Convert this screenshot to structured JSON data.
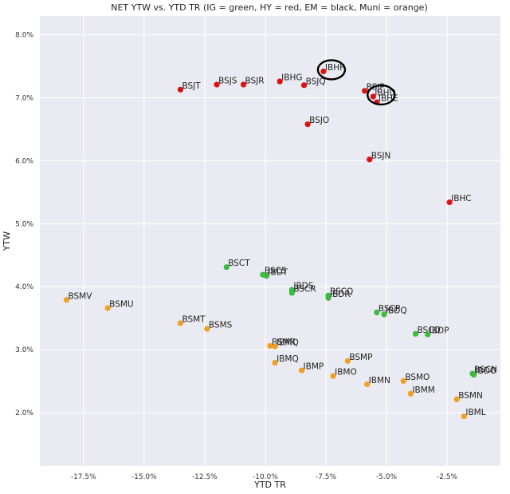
{
  "chart_data": {
    "type": "scatter",
    "title": "NET YTW vs. YTD TR (IG = green, HY = red, EM = black, Muni = orange)",
    "xlabel": "YTD TR",
    "ylabel": "YTW",
    "xlim": [
      -19.3,
      -0.3
    ],
    "ylim": [
      1.15,
      8.3
    ],
    "xticks": [
      -17.5,
      -15.0,
      -12.5,
      -10.0,
      -7.5,
      -5.0,
      -2.5
    ],
    "xtick_labels": [
      "-17.5%",
      "-15.0%",
      "-12.5%",
      "-10.0%",
      "-7.5%",
      "-5.0%",
      "-2.5%"
    ],
    "yticks": [
      2.0,
      3.0,
      4.0,
      5.0,
      6.0,
      7.0,
      8.0
    ],
    "ytick_labels": [
      "2.0%",
      "3.0%",
      "4.0%",
      "5.0%",
      "6.0%",
      "7.0%",
      "8.0%"
    ],
    "grid": true,
    "colors": {
      "background": "#eaeaf2",
      "grid": "#ffffff",
      "IG": "#3dbb3d",
      "HY": "#dd1111",
      "Muni": "#f0a020",
      "circle": "#000000"
    },
    "points": [
      {
        "label": "BSJT",
        "x": -13.5,
        "y": 7.13,
        "group": "HY"
      },
      {
        "label": "BSJS",
        "x": -12.0,
        "y": 7.21,
        "group": "HY"
      },
      {
        "label": "BSJR",
        "x": -10.9,
        "y": 7.21,
        "group": "HY"
      },
      {
        "label": "IBHG",
        "x": -9.4,
        "y": 7.26,
        "group": "HY"
      },
      {
        "label": "BSJQ",
        "x": -8.4,
        "y": 7.2,
        "group": "HY"
      },
      {
        "label": "IBHF",
        "x": -7.6,
        "y": 7.42,
        "group": "HY"
      },
      {
        "label": "BSJP",
        "x": -5.9,
        "y": 7.11,
        "group": "HY"
      },
      {
        "label": "IBHD",
        "x": -5.55,
        "y": 7.02,
        "group": "HY"
      },
      {
        "label": "IBHE",
        "x": -5.4,
        "y": 6.93,
        "group": "HY"
      },
      {
        "label": "BSJO",
        "x": -8.25,
        "y": 6.58,
        "group": "HY"
      },
      {
        "label": "BSJN",
        "x": -5.7,
        "y": 6.02,
        "group": "HY"
      },
      {
        "label": "IBHC",
        "x": -2.4,
        "y": 5.34,
        "group": "HY"
      },
      {
        "label": "BSCT",
        "x": -11.6,
        "y": 4.31,
        "group": "IG"
      },
      {
        "label": "BSCS",
        "x": -10.1,
        "y": 4.19,
        "group": "IG"
      },
      {
        "label": "IBDT",
        "x": -9.95,
        "y": 4.17,
        "group": "IG"
      },
      {
        "label": "IBDS",
        "x": -8.9,
        "y": 3.95,
        "group": "IG"
      },
      {
        "label": "BSCR",
        "x": -8.9,
        "y": 3.9,
        "group": "IG"
      },
      {
        "label": "BSCQ",
        "x": -7.4,
        "y": 3.86,
        "group": "IG"
      },
      {
        "label": "IBDR",
        "x": -7.4,
        "y": 3.82,
        "group": "IG"
      },
      {
        "label": "BSCP",
        "x": -5.4,
        "y": 3.59,
        "group": "IG"
      },
      {
        "label": "IBDQ",
        "x": -5.1,
        "y": 3.56,
        "group": "IG"
      },
      {
        "label": "BSCO",
        "x": -3.8,
        "y": 3.25,
        "group": "IG"
      },
      {
        "label": "IBDP",
        "x": -3.3,
        "y": 3.24,
        "group": "IG"
      },
      {
        "label": "BSCN",
        "x": -1.45,
        "y": 2.62,
        "group": "IG"
      },
      {
        "label": "IBDO",
        "x": -1.4,
        "y": 2.6,
        "group": "IG"
      },
      {
        "label": "BSMV",
        "x": -18.2,
        "y": 3.79,
        "group": "Muni"
      },
      {
        "label": "BSMU",
        "x": -16.5,
        "y": 3.66,
        "group": "Muni"
      },
      {
        "label": "BSMT",
        "x": -13.5,
        "y": 3.42,
        "group": "Muni"
      },
      {
        "label": "BSMS",
        "x": -12.4,
        "y": 3.33,
        "group": "Muni"
      },
      {
        "label": "BSMR",
        "x": -9.8,
        "y": 3.06,
        "group": "Muni"
      },
      {
        "label": "IBMQ",
        "x": -9.6,
        "y": 3.05,
        "group": "Muni"
      },
      {
        "label": "IBMQ",
        "x": -9.6,
        "y": 2.79,
        "group": "Muni"
      },
      {
        "label": "BSMP",
        "x": -6.6,
        "y": 2.82,
        "group": "Muni"
      },
      {
        "label": "IBMP",
        "x": -8.5,
        "y": 2.67,
        "group": "Muni"
      },
      {
        "label": "IBMO",
        "x": -7.2,
        "y": 2.58,
        "group": "Muni"
      },
      {
        "label": "IBMN",
        "x": -5.8,
        "y": 2.45,
        "group": "Muni"
      },
      {
        "label": "BSMO",
        "x": -4.3,
        "y": 2.5,
        "group": "Muni"
      },
      {
        "label": "IBMM",
        "x": -4.0,
        "y": 2.3,
        "group": "Muni"
      },
      {
        "label": "BSMN",
        "x": -2.1,
        "y": 2.21,
        "group": "Muni"
      },
      {
        "label": "IBML",
        "x": -1.8,
        "y": 1.94,
        "group": "Muni"
      }
    ],
    "annotations": [
      {
        "type": "circle",
        "target": "IBHF"
      },
      {
        "type": "circle",
        "target": "IBHD"
      }
    ]
  }
}
